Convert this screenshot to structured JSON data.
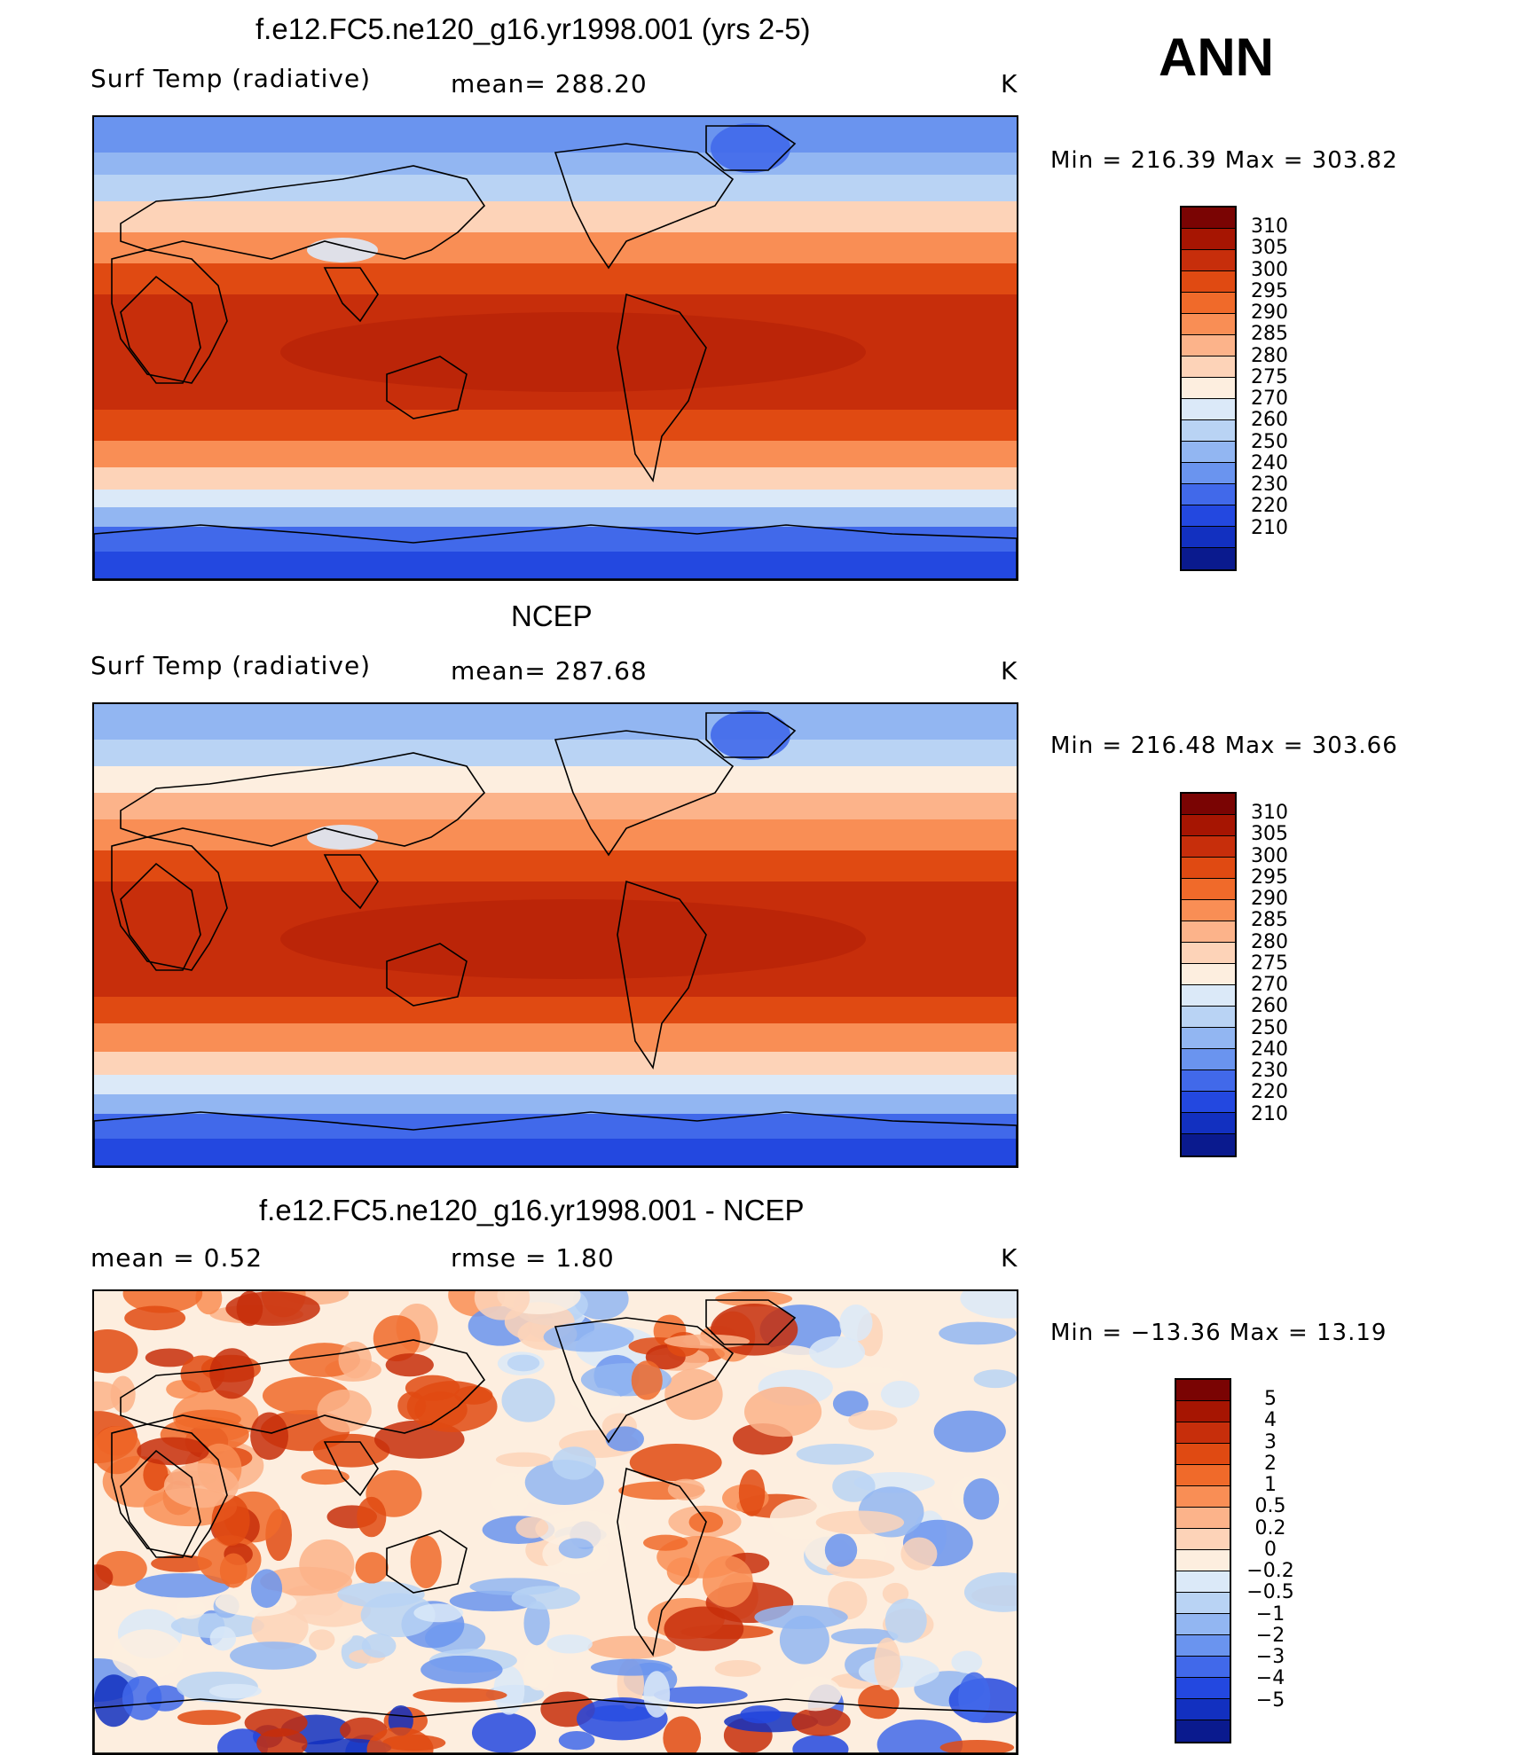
{
  "season": "ANN",
  "units": "K",
  "colors": {
    "temp_scale": [
      "#7a0403",
      "#a61502",
      "#c72e0b",
      "#e04a12",
      "#f06a2a",
      "#f98e55",
      "#fcb38a",
      "#fdd3b8",
      "#fdeedf",
      "#dbe9f8",
      "#b9d3f4",
      "#92b6f2",
      "#6a94ef",
      "#4169ea",
      "#2348e0",
      "#1230c0",
      "#0a1a8e"
    ],
    "diff_scale": [
      "#7a0403",
      "#a61502",
      "#c72e0b",
      "#e04a12",
      "#f06a2a",
      "#f98e55",
      "#fcb38a",
      "#fdd3b8",
      "#fdeedf",
      "#dbe9f8",
      "#b9d3f4",
      "#92b6f2",
      "#6a94ef",
      "#4169ea",
      "#2348e0",
      "#1230c0",
      "#0a1a8e"
    ]
  },
  "panels": [
    {
      "title": "f.e12.FC5.ne120_g16.yr1998.001 (yrs 2-5)",
      "left_label": "Surf Temp (radiative)",
      "mean_label": "mean=  288.20",
      "unit": "K",
      "minmax": "Min  =  216.39  Max  =  303.82",
      "colorbar_ticks": [
        "310",
        "305",
        "300",
        "295",
        "290",
        "285",
        "280",
        "275",
        "270",
        "260",
        "250",
        "240",
        "230",
        "220",
        "210"
      ]
    },
    {
      "title": "NCEP",
      "left_label": "Surf Temp (radiative)",
      "mean_label": "mean=  287.68",
      "unit": "K",
      "minmax": "Min  =  216.48  Max  =  303.66",
      "colorbar_ticks": [
        "310",
        "305",
        "300",
        "295",
        "290",
        "285",
        "280",
        "275",
        "270",
        "260",
        "250",
        "240",
        "230",
        "220",
        "210"
      ]
    },
    {
      "title": "f.e12.FC5.ne120_g16.yr1998.001 - NCEP",
      "left_label": "mean  =      0.52",
      "mean_label": "rmse  =      1.80",
      "unit": "K",
      "minmax": "Min  =  −13.36  Max  =     13.19",
      "colorbar_ticks": [
        "5",
        "4",
        "3",
        "2",
        "1",
        "0.5",
        "0.2",
        "0",
        "−0.2",
        "−0.5",
        "−1",
        "−2",
        "−3",
        "−4",
        "−5"
      ]
    }
  ]
}
